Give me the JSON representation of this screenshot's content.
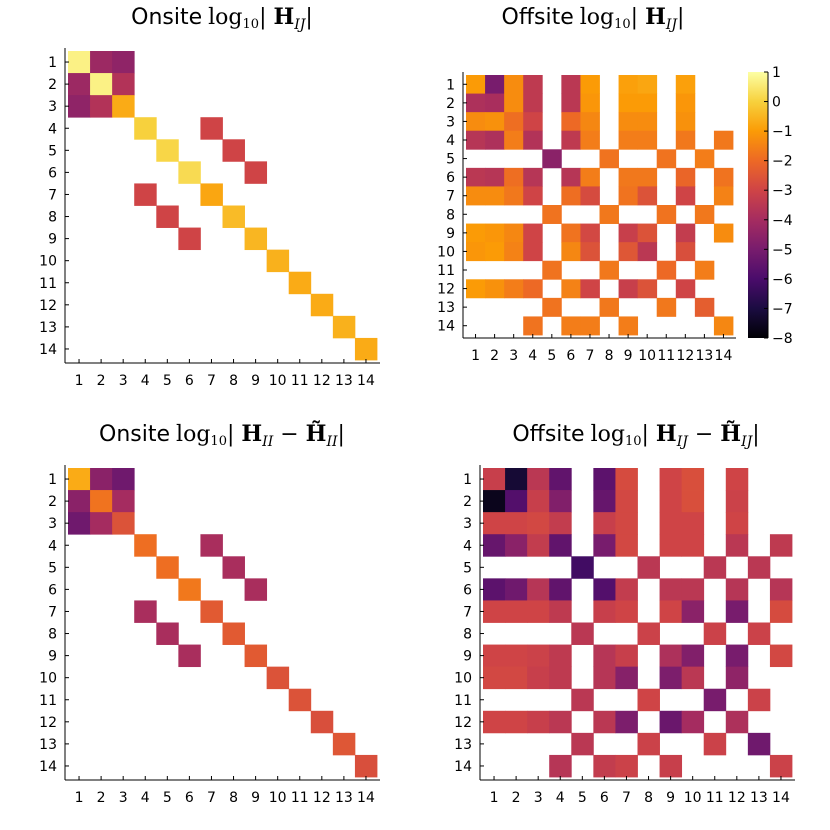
{
  "chart_data": [
    {
      "type": "heatmap",
      "title_prefix": "Onsite",
      "title_math": "log₁₀| H_IJ |",
      "title_html": "log<tspan font-size='13' dy='4'>10</tspan><tspan dy='-4'>| </tspan><tspan font-weight='bold'>H</tspan><tspan font-style='italic' font-size='14' dy='5'>IJ</tspan><tspan dy='-5'>|</tspan>",
      "xticks": [
        "1",
        "2",
        "3",
        "4",
        "5",
        "6",
        "7",
        "8",
        "9",
        "10",
        "11",
        "12",
        "13",
        "14"
      ],
      "yticks": [
        "1",
        "2",
        "3",
        "4",
        "5",
        "6",
        "7",
        "8",
        "9",
        "10",
        "11",
        "12",
        "13",
        "14"
      ],
      "x_range": [
        1,
        14
      ],
      "y_range": [
        1,
        14
      ],
      "clim": [
        -8,
        1
      ],
      "missing": "white",
      "rows": [
        [
          0.7,
          -4.2,
          -4.5,
          null,
          null,
          null,
          null,
          null,
          null,
          null,
          null,
          null,
          null,
          null
        ],
        [
          -4.2,
          0.7,
          -3.7,
          null,
          null,
          null,
          null,
          null,
          null,
          null,
          null,
          null,
          null,
          null
        ],
        [
          -4.5,
          -3.7,
          -0.7,
          null,
          null,
          null,
          null,
          null,
          null,
          null,
          null,
          null,
          null,
          null
        ],
        [
          null,
          null,
          null,
          0.0,
          null,
          null,
          -3.0,
          null,
          null,
          null,
          null,
          null,
          null,
          null
        ],
        [
          null,
          null,
          null,
          null,
          0.1,
          null,
          null,
          -3.0,
          null,
          null,
          null,
          null,
          null,
          null
        ],
        [
          null,
          null,
          null,
          null,
          null,
          0.2,
          null,
          null,
          -3.0,
          null,
          null,
          null,
          null,
          null
        ],
        [
          null,
          null,
          null,
          -3.0,
          null,
          null,
          -0.8,
          null,
          null,
          null,
          null,
          null,
          null,
          null
        ],
        [
          null,
          null,
          null,
          null,
          -3.0,
          null,
          null,
          -0.4,
          null,
          null,
          null,
          null,
          null,
          null
        ],
        [
          null,
          null,
          null,
          null,
          null,
          -3.0,
          null,
          null,
          -0.5,
          null,
          null,
          null,
          null,
          null
        ],
        [
          null,
          null,
          null,
          null,
          null,
          null,
          null,
          null,
          null,
          -0.6,
          null,
          null,
          null,
          null
        ],
        [
          null,
          null,
          null,
          null,
          null,
          null,
          null,
          null,
          null,
          null,
          -0.7,
          null,
          null,
          null
        ],
        [
          null,
          null,
          null,
          null,
          null,
          null,
          null,
          null,
          null,
          null,
          null,
          -0.7,
          null,
          null
        ],
        [
          null,
          null,
          null,
          null,
          null,
          null,
          null,
          null,
          null,
          null,
          null,
          null,
          -0.6,
          null
        ],
        [
          null,
          null,
          null,
          null,
          null,
          null,
          null,
          null,
          null,
          null,
          null,
          null,
          null,
          -0.7
        ]
      ]
    },
    {
      "type": "heatmap",
      "title_prefix": "Offsite",
      "title_math": "log₁₀| H_IJ |",
      "title_html": "log<tspan font-size='13' dy='4'>10</tspan><tspan dy='-4'>| </tspan><tspan font-weight='bold'>H</tspan><tspan font-style='italic' font-size='14' dy='5'>IJ</tspan><tspan dy='-5'>|</tspan>",
      "xticks": [
        "1",
        "2",
        "3",
        "4",
        "5",
        "6",
        "7",
        "8",
        "9",
        "10",
        "11",
        "12",
        "13",
        "14"
      ],
      "yticks": [
        "1",
        "2",
        "3",
        "4",
        "5",
        "6",
        "7",
        "8",
        "9",
        "10",
        "11",
        "12",
        "13",
        "14"
      ],
      "x_range": [
        1,
        14
      ],
      "y_range": [
        1,
        14
      ],
      "clim": [
        -8,
        1
      ],
      "missing": "white",
      "colorbar": {
        "ticks": [
          "1",
          "0",
          "−1",
          "−2",
          "−3",
          "−4",
          "−5",
          "−6",
          "−7",
          "−8"
        ],
        "tick_values": [
          1,
          0,
          -1,
          -2,
          -3,
          -4,
          -5,
          -6,
          -7,
          -8
        ]
      },
      "rows": [
        [
          -1.0,
          -5.0,
          -1.3,
          -3.4,
          null,
          -3.5,
          -1.0,
          null,
          -0.9,
          -0.8,
          null,
          -0.9,
          null,
          null
        ],
        [
          -3.8,
          -3.9,
          -1.3,
          -3.4,
          null,
          -3.5,
          -1.1,
          null,
          -1.0,
          -1.0,
          null,
          -1.1,
          null,
          null
        ],
        [
          -1.3,
          -1.2,
          -1.9,
          -3.0,
          null,
          -2.0,
          -1.4,
          null,
          -1.3,
          -1.3,
          null,
          -1.2,
          null,
          null
        ],
        [
          -3.6,
          -3.8,
          -1.6,
          -3.7,
          null,
          -3.4,
          -1.6,
          null,
          -1.6,
          -1.6,
          null,
          -1.7,
          null,
          -1.7
        ],
        [
          null,
          null,
          null,
          null,
          -4.6,
          null,
          null,
          -1.8,
          null,
          null,
          -1.8,
          null,
          -1.6,
          null
        ],
        [
          -3.5,
          -3.6,
          -1.9,
          -3.6,
          null,
          -3.6,
          -1.6,
          null,
          -1.7,
          -1.7,
          null,
          -2.1,
          null,
          -1.8
        ],
        [
          -1.3,
          -1.3,
          -1.7,
          -3.0,
          null,
          -1.9,
          -2.8,
          null,
          -1.8,
          -2.6,
          null,
          -3.0,
          null,
          -1.5
        ],
        [
          null,
          null,
          null,
          null,
          -1.8,
          null,
          null,
          -1.7,
          null,
          null,
          -1.8,
          null,
          -1.7,
          null
        ],
        [
          -1.0,
          -1.1,
          -1.4,
          -3.0,
          null,
          -1.8,
          -2.9,
          null,
          -3.2,
          -2.6,
          null,
          -3.3,
          null,
          -1.3
        ],
        [
          -1.1,
          -1.0,
          -1.5,
          -3.0,
          null,
          -1.4,
          -2.6,
          null,
          -2.5,
          -3.5,
          null,
          -2.7,
          null,
          null
        ],
        [
          null,
          null,
          null,
          null,
          -1.8,
          null,
          null,
          -1.7,
          null,
          null,
          -2.0,
          null,
          -1.6,
          null
        ],
        [
          -1.0,
          -1.2,
          -1.6,
          -2.0,
          null,
          -1.5,
          -3.0,
          null,
          -3.2,
          -2.6,
          null,
          -3.0,
          null,
          null
        ],
        [
          null,
          null,
          null,
          null,
          -1.8,
          null,
          null,
          -1.7,
          null,
          null,
          -1.7,
          null,
          -2.3,
          null
        ],
        [
          null,
          null,
          null,
          -1.8,
          null,
          -1.6,
          -1.6,
          null,
          -1.6,
          null,
          null,
          null,
          null,
          -1.4
        ]
      ]
    },
    {
      "type": "heatmap",
      "title_prefix": "Onsite",
      "title_math": "log₁₀| H_II − H̃_II |",
      "title_html": "log<tspan font-size='13' dy='4'>10</tspan><tspan dy='-4'>| </tspan><tspan font-weight='bold'>H</tspan><tspan font-style='italic' font-size='14' dy='5'>II</tspan><tspan dy='-5'> − </tspan><tspan font-weight='bold'>H̃</tspan><tspan font-style='italic' font-size='14' dy='5'>II</tspan><tspan dy='-5'>|</tspan>",
      "xticks": [
        "1",
        "2",
        "3",
        "4",
        "5",
        "6",
        "7",
        "8",
        "9",
        "10",
        "11",
        "12",
        "13",
        "14"
      ],
      "yticks": [
        "1",
        "2",
        "3",
        "4",
        "5",
        "6",
        "7",
        "8",
        "9",
        "10",
        "11",
        "12",
        "13",
        "14"
      ],
      "x_range": [
        1,
        14
      ],
      "y_range": [
        1,
        14
      ],
      "clim": [
        -8,
        1
      ],
      "missing": "white",
      "rows": [
        [
          -0.7,
          -4.6,
          -5.2,
          null,
          null,
          null,
          null,
          null,
          null,
          null,
          null,
          null,
          null,
          null
        ],
        [
          -4.6,
          -1.8,
          -4.0,
          null,
          null,
          null,
          null,
          null,
          null,
          null,
          null,
          null,
          null,
          null
        ],
        [
          -5.2,
          -4.0,
          -2.6,
          null,
          null,
          null,
          null,
          null,
          null,
          null,
          null,
          null,
          null,
          null
        ],
        [
          null,
          null,
          null,
          -1.9,
          null,
          null,
          -3.9,
          null,
          null,
          null,
          null,
          null,
          null,
          null
        ],
        [
          null,
          null,
          null,
          null,
          -1.9,
          null,
          null,
          -3.9,
          null,
          null,
          null,
          null,
          null,
          null
        ],
        [
          null,
          null,
          null,
          null,
          null,
          -1.7,
          null,
          null,
          -3.9,
          null,
          null,
          null,
          null,
          null
        ],
        [
          null,
          null,
          null,
          -3.9,
          null,
          null,
          -2.4,
          null,
          null,
          null,
          null,
          null,
          null,
          null
        ],
        [
          null,
          null,
          null,
          null,
          -3.9,
          null,
          null,
          -2.4,
          null,
          null,
          null,
          null,
          null,
          null
        ],
        [
          null,
          null,
          null,
          null,
          null,
          -3.9,
          null,
          null,
          -2.4,
          null,
          null,
          null,
          null,
          null
        ],
        [
          null,
          null,
          null,
          null,
          null,
          null,
          null,
          null,
          null,
          -2.6,
          null,
          null,
          null,
          null
        ],
        [
          null,
          null,
          null,
          null,
          null,
          null,
          null,
          null,
          null,
          null,
          -2.6,
          null,
          null,
          null
        ],
        [
          null,
          null,
          null,
          null,
          null,
          null,
          null,
          null,
          null,
          null,
          null,
          -2.7,
          null,
          null
        ],
        [
          null,
          null,
          null,
          null,
          null,
          null,
          null,
          null,
          null,
          null,
          null,
          null,
          -2.5,
          null
        ],
        [
          null,
          null,
          null,
          null,
          null,
          null,
          null,
          null,
          null,
          null,
          null,
          null,
          null,
          -2.7
        ]
      ]
    },
    {
      "type": "heatmap",
      "title_prefix": "Offsite",
      "title_math": "log₁₀| H_IJ − H̃_IJ |",
      "title_html": "log<tspan font-size='13' dy='4'>10</tspan><tspan dy='-4'>| </tspan><tspan font-weight='bold'>H</tspan><tspan font-style='italic' font-size='14' dy='5'>IJ</tspan><tspan dy='-5'> − </tspan><tspan font-weight='bold'>H̃</tspan><tspan font-style='italic' font-size='14' dy='5'>IJ</tspan><tspan dy='-5'>|</tspan>",
      "xticks": [
        "1",
        "2",
        "3",
        "4",
        "5",
        "6",
        "7",
        "8",
        "9",
        "10",
        "11",
        "12",
        "13",
        "14"
      ],
      "yticks": [
        "1",
        "2",
        "3",
        "4",
        "5",
        "6",
        "7",
        "8",
        "9",
        "10",
        "11",
        "12",
        "13",
        "14"
      ],
      "x_range": [
        1,
        14
      ],
      "y_range": [
        1,
        14
      ],
      "clim": [
        -8,
        1
      ],
      "missing": "white",
      "rows": [
        [
          -3.2,
          -7.2,
          -3.5,
          -5.5,
          null,
          -5.6,
          -2.8,
          null,
          -3.0,
          -2.7,
          null,
          -3.0,
          null,
          null
        ],
        [
          -7.6,
          -5.8,
          -3.2,
          -4.8,
          null,
          -5.4,
          -2.9,
          null,
          -3.0,
          -2.7,
          null,
          -3.1,
          null,
          null
        ],
        [
          -3.0,
          -3.0,
          -2.9,
          -3.3,
          null,
          -3.2,
          -2.9,
          null,
          -3.0,
          -3.0,
          null,
          -3.0,
          null,
          null
        ],
        [
          -5.4,
          -4.6,
          -3.3,
          -5.5,
          null,
          -5.0,
          -2.9,
          null,
          -3.0,
          -3.0,
          null,
          -3.5,
          null,
          -3.4
        ],
        [
          null,
          null,
          null,
          null,
          -6.2,
          null,
          null,
          -3.5,
          null,
          null,
          -3.5,
          null,
          -3.5,
          null
        ],
        [
          -5.6,
          -5.2,
          -3.6,
          -5.5,
          null,
          -5.8,
          -3.3,
          null,
          -3.5,
          -3.5,
          null,
          -3.6,
          null,
          -3.6
        ],
        [
          -3.0,
          -3.0,
          -3.0,
          -3.4,
          null,
          -3.2,
          -3.0,
          null,
          -3.0,
          -4.6,
          null,
          -5.0,
          null,
          -2.8
        ],
        [
          null,
          null,
          null,
          null,
          -3.5,
          null,
          null,
          -3.1,
          null,
          null,
          -3.1,
          null,
          -3.1,
          null
        ],
        [
          -3.0,
          -3.0,
          -3.1,
          -3.4,
          null,
          -3.6,
          -3.2,
          null,
          -3.8,
          -4.8,
          null,
          -5.0,
          null,
          -2.9
        ],
        [
          -2.9,
          -2.9,
          -3.2,
          -3.4,
          null,
          -3.6,
          -4.7,
          null,
          -4.9,
          -3.5,
          null,
          -4.5,
          null,
          null
        ],
        [
          null,
          null,
          null,
          null,
          -3.5,
          null,
          null,
          -3.0,
          null,
          null,
          -5.0,
          null,
          -3.1,
          null
        ],
        [
          -3.0,
          -3.0,
          -3.2,
          -3.5,
          null,
          -3.5,
          -4.9,
          null,
          -5.3,
          -4.0,
          null,
          -3.8,
          null,
          null
        ],
        [
          null,
          null,
          null,
          null,
          -3.5,
          null,
          null,
          -3.1,
          null,
          null,
          -3.1,
          null,
          -5.2,
          null
        ],
        [
          null,
          null,
          null,
          -3.6,
          null,
          -3.3,
          -3.1,
          null,
          -3.2,
          null,
          null,
          null,
          null,
          -3.1
        ]
      ]
    }
  ]
}
